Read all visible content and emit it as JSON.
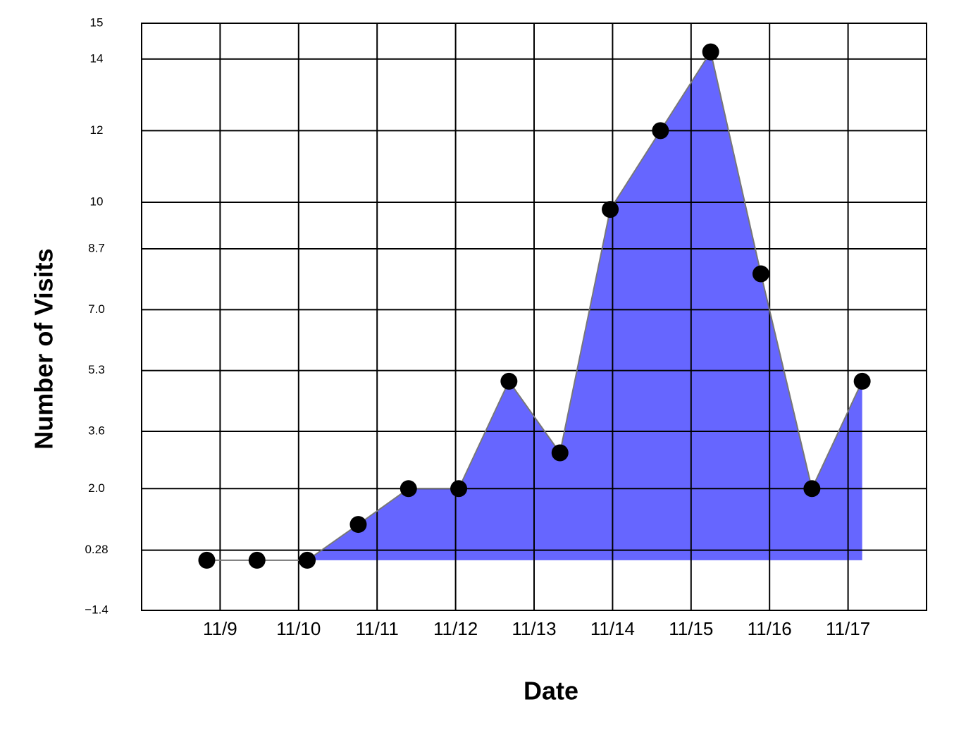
{
  "chart_data": {
    "type": "area",
    "x_label": "Date",
    "y_label": "Number of Visits",
    "x": [
      8.83,
      9.47,
      10.11,
      10.76,
      11.4,
      12.04,
      12.68,
      13.33,
      13.97,
      14.61,
      15.25,
      15.89,
      16.54,
      17.18
    ],
    "series": [
      {
        "color": "#6666ff",
        "values": [
          0,
          0,
          0,
          1,
          2,
          2,
          5,
          3,
          9.8,
          12,
          14.2,
          8,
          2,
          5
        ]
      }
    ],
    "xlim": [
      8,
      18
    ],
    "xticks": [
      {
        "value": 9,
        "label": "11/9"
      },
      {
        "value": 10,
        "label": "11/10"
      },
      {
        "value": 11,
        "label": "11/11"
      },
      {
        "value": 12,
        "label": "11/12"
      },
      {
        "value": 13,
        "label": "11/13"
      },
      {
        "value": 14,
        "label": "11/14"
      },
      {
        "value": 15,
        "label": "11/15"
      },
      {
        "value": 16,
        "label": "11/16"
      },
      {
        "value": 17,
        "label": "11/17"
      }
    ],
    "ylim": [
      -1.4,
      15
    ],
    "yticks": [
      {
        "value": -1.4,
        "label": "−1.4"
      },
      0.28,
      {
        "value": 2,
        "label": "2.0"
      },
      3.6,
      5.3,
      {
        "value": 7,
        "label": "7.0"
      },
      8.7,
      10,
      12,
      14,
      15
    ],
    "grid": true
  }
}
